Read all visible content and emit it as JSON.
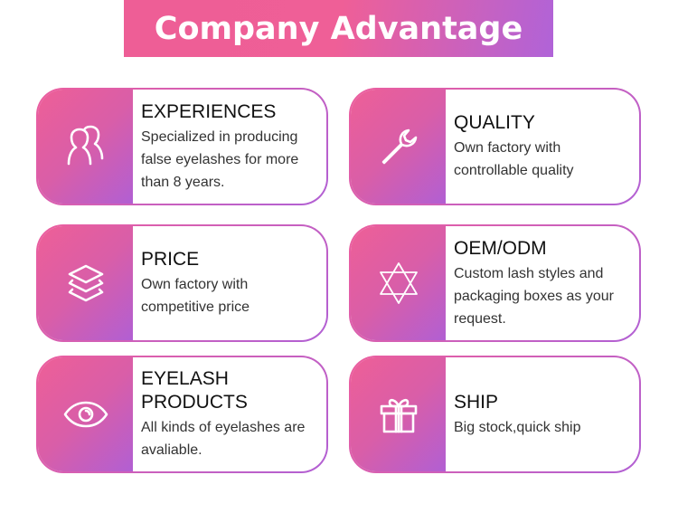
{
  "header": {
    "title": "Company Advantage"
  },
  "colors": {
    "gradient_start": "#ee5e96",
    "gradient_end": "#b063d8"
  },
  "cards": [
    {
      "icon": "users-icon",
      "title": "EXPERIENCES",
      "description": "Specialized in producing false eyelashes for more than 8 years."
    },
    {
      "icon": "wrench-icon",
      "title": "QUALITY",
      "description": "Own factory with controllable quality"
    },
    {
      "icon": "layers-icon",
      "title": "PRICE",
      "description": "Own factory with competitive price"
    },
    {
      "icon": "star-of-david-icon",
      "title": "OEM/ODM",
      "description": "Custom lash styles and packaging boxes as your request."
    },
    {
      "icon": "eye-icon",
      "title": "EYELASH PRODUCTS",
      "description": "All kinds of eyelashes are avaliable."
    },
    {
      "icon": "gift-icon",
      "title": "SHIP",
      "description": "Big stock,quick ship"
    }
  ]
}
